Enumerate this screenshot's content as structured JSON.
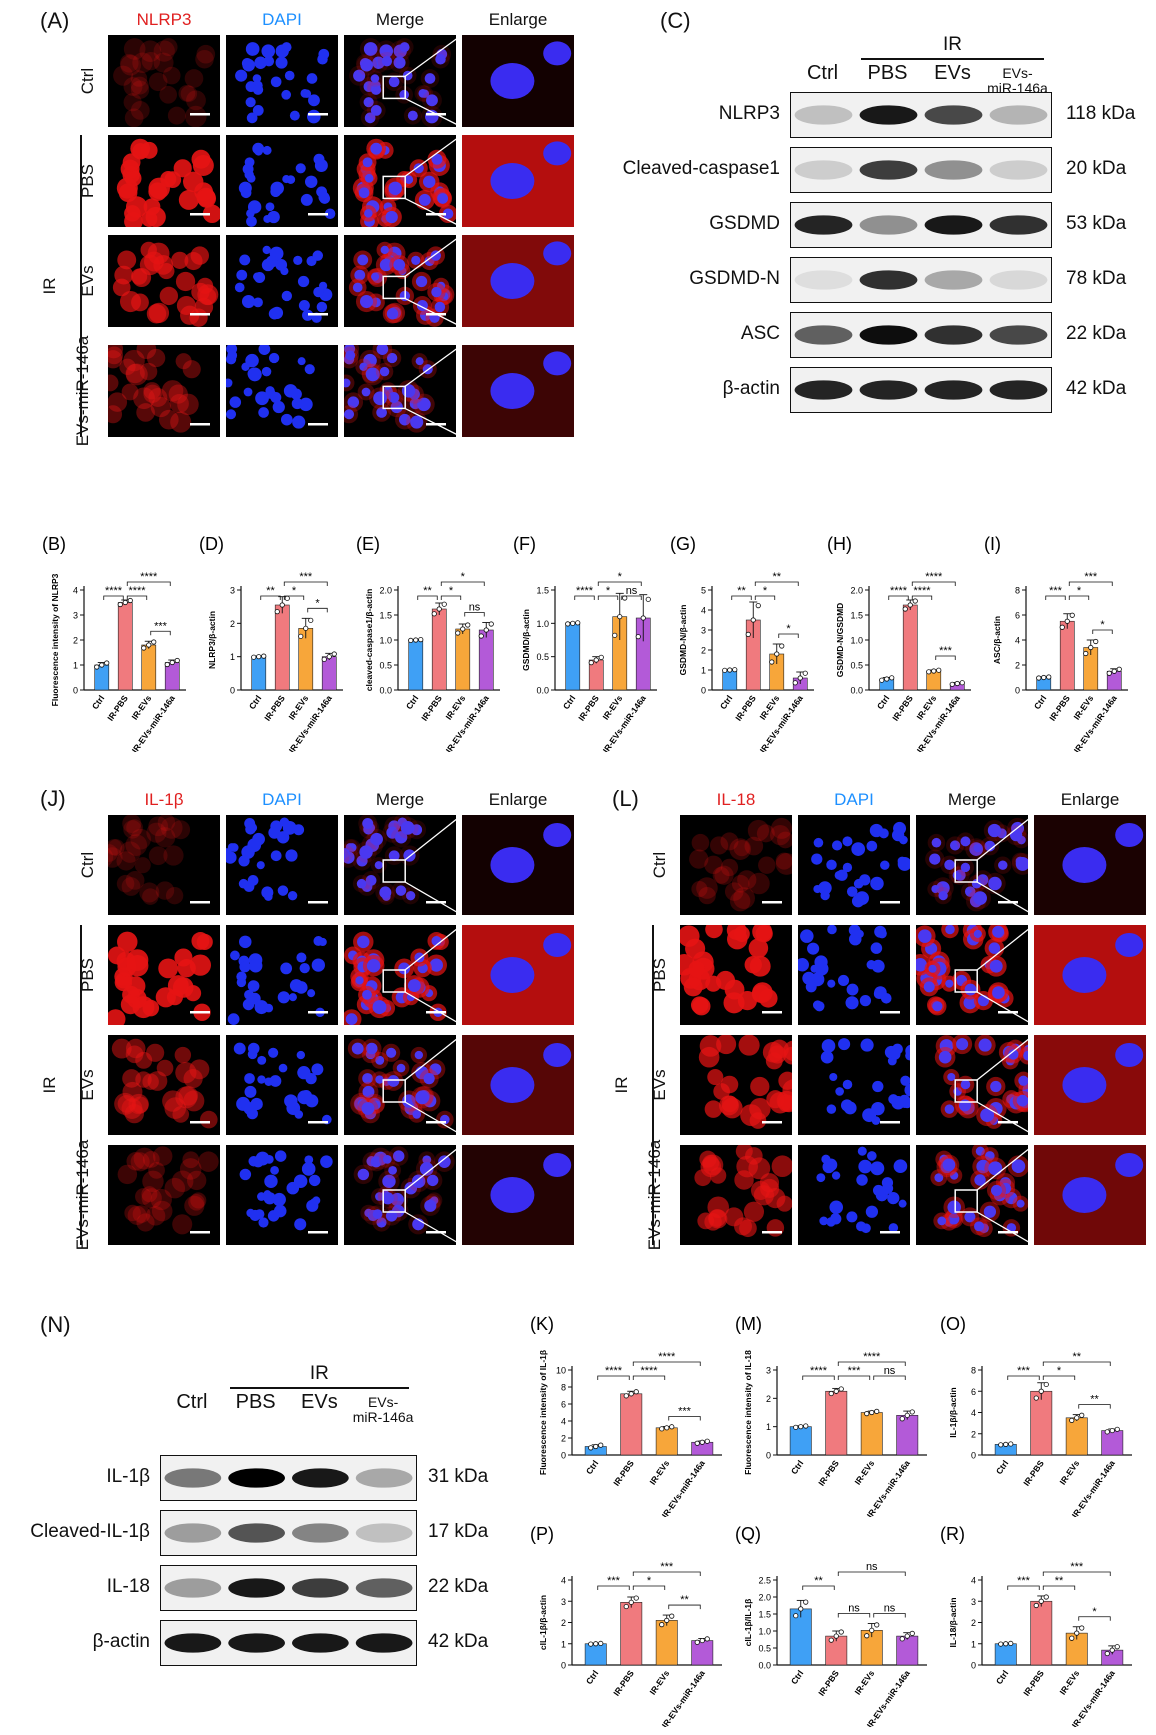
{
  "colors": {
    "ctrl": "#3fa0f5",
    "pbs": "#f07a7e",
    "evs": "#f7a63a",
    "mir": "#b35ad8",
    "nlrp3_label": "#e02020",
    "dapi_label": "#1e90ff"
  },
  "panelA": {
    "label": "(A)",
    "columns": [
      "NLRP3",
      "DAPI",
      "Merge",
      "Enlarge"
    ],
    "rows": [
      "Ctrl",
      "PBS",
      "EVs",
      "EVs-miR-146a"
    ],
    "group": "IR"
  },
  "panelC": {
    "label": "(C)",
    "group": "IR",
    "lanes": [
      "Ctrl",
      "PBS",
      "EVs",
      "EVs-\nmiR-146a"
    ],
    "bands": [
      {
        "name": "NLRP3",
        "kda": "118 kDa"
      },
      {
        "name": "Cleaved-caspase1",
        "kda": "20 kDa"
      },
      {
        "name": "GSDMD",
        "kda": "53 kDa"
      },
      {
        "name": "GSDMD-N",
        "kda": "78 kDa"
      },
      {
        "name": "ASC",
        "kda": "22 kDa"
      },
      {
        "name": "β-actin",
        "kda": "42 kDa"
      }
    ]
  },
  "panelJ": {
    "label": "(J)",
    "columns": [
      "IL-1β",
      "DAPI",
      "Merge",
      "Enlarge"
    ],
    "rows": [
      "Ctrl",
      "PBS",
      "EVs",
      "EVs-miR-146a"
    ],
    "group": "IR"
  },
  "panelL": {
    "label": "(L)",
    "columns": [
      "IL-18",
      "DAPI",
      "Merge",
      "Enlarge"
    ],
    "rows": [
      "Ctrl",
      "PBS",
      "EVs",
      "EVs-miR-146a"
    ],
    "group": "IR"
  },
  "panelN": {
    "label": "(N)",
    "group": "IR",
    "lanes": [
      "Ctrl",
      "PBS",
      "EVs",
      "EVs-\nmiR-146a"
    ],
    "bands": [
      {
        "name": "IL-1β",
        "kda": "31 kDa"
      },
      {
        "name": "Cleaved-IL-1β",
        "kda": "17 kDa"
      },
      {
        "name": "IL-18",
        "kda": "22 kDa"
      },
      {
        "name": "β-actin",
        "kda": "42 kDa"
      }
    ]
  },
  "chart_data": [
    {
      "id": "B",
      "label": "(B)",
      "type": "bar",
      "ylabel": "Fluorescence intensity of NLRP3",
      "categories": [
        "Ctrl",
        "IR-PBS",
        "IR-EVs",
        "IR-EVs-miR-146a"
      ],
      "values": [
        1.0,
        3.5,
        1.8,
        1.1
      ],
      "errors": [
        0.1,
        0.1,
        0.15,
        0.1
      ],
      "ylim": [
        0,
        4
      ],
      "yticks": [
        0,
        1,
        2,
        3,
        4
      ],
      "brackets": [
        {
          "a": 0,
          "b": 1,
          "text": "****",
          "lvl": 0
        },
        {
          "a": 1,
          "b": 2,
          "text": "****",
          "lvl": 0
        },
        {
          "a": 1,
          "b": 3,
          "text": "****",
          "lvl": 1
        },
        {
          "a": 2,
          "b": 3,
          "text": "***",
          "lvl": -1
        }
      ]
    },
    {
      "id": "D",
      "label": "(D)",
      "type": "bar",
      "ylabel": "NLRP3/β-actin",
      "categories": [
        "Ctrl",
        "IR-PBS",
        "IR-EVs",
        "IR-EVs-miR-146a"
      ],
      "values": [
        1.0,
        2.55,
        1.85,
        1.0
      ],
      "errors": [
        0.02,
        0.25,
        0.3,
        0.1
      ],
      "ylim": [
        0,
        3
      ],
      "yticks": [
        0,
        1,
        2,
        3
      ],
      "brackets": [
        {
          "a": 0,
          "b": 1,
          "text": "**",
          "lvl": 0
        },
        {
          "a": 1,
          "b": 2,
          "text": "*",
          "lvl": 0
        },
        {
          "a": 1,
          "b": 3,
          "text": "***",
          "lvl": 1
        },
        {
          "a": 2,
          "b": 3,
          "text": "*",
          "lvl": -1
        }
      ]
    },
    {
      "id": "E",
      "label": "(E)",
      "type": "bar",
      "ylabel": "cleaved-caspase1/β-actin",
      "categories": [
        "Ctrl",
        "IR-PBS",
        "IR-EVs",
        "IR-EVs-miR-146a"
      ],
      "values": [
        1.0,
        1.62,
        1.22,
        1.2
      ],
      "errors": [
        0.01,
        0.12,
        0.1,
        0.15
      ],
      "ylim": [
        0,
        2.0
      ],
      "yticks": [
        0,
        0.5,
        1.0,
        1.5,
        2.0
      ],
      "brackets": [
        {
          "a": 0,
          "b": 1,
          "text": "**",
          "lvl": 0
        },
        {
          "a": 1,
          "b": 2,
          "text": "*",
          "lvl": 0
        },
        {
          "a": 1,
          "b": 3,
          "text": "*",
          "lvl": 1
        },
        {
          "a": 2,
          "b": 3,
          "text": "ns",
          "lvl": -1
        }
      ]
    },
    {
      "id": "F",
      "label": "(F)",
      "type": "bar",
      "ylabel": "GSDMD/β-actin",
      "categories": [
        "Ctrl",
        "IR-PBS",
        "IR-EVs",
        "IR-EVs-miR-146a"
      ],
      "values": [
        1.0,
        0.45,
        1.1,
        1.08
      ],
      "errors": [
        0.01,
        0.05,
        0.35,
        0.35
      ],
      "ylim": [
        0,
        1.5
      ],
      "yticks": [
        0,
        0.5,
        1.0,
        1.5
      ],
      "brackets": [
        {
          "a": 0,
          "b": 1,
          "text": "****",
          "lvl": 0
        },
        {
          "a": 1,
          "b": 2,
          "text": "*",
          "lvl": 0
        },
        {
          "a": 1,
          "b": 3,
          "text": "*",
          "lvl": 1
        },
        {
          "a": 2,
          "b": 3,
          "text": "ns",
          "lvl": 0
        }
      ]
    },
    {
      "id": "G",
      "label": "(G)",
      "type": "bar",
      "ylabel": "GSDMD-N/β-actin",
      "categories": [
        "Ctrl",
        "IR-PBS",
        "IR-EVs",
        "IR-EVs-miR-146a"
      ],
      "values": [
        1.0,
        3.5,
        1.8,
        0.6
      ],
      "errors": [
        0.02,
        0.9,
        0.5,
        0.3
      ],
      "ylim": [
        0,
        5
      ],
      "yticks": [
        0,
        1,
        2,
        3,
        4,
        5
      ],
      "brackets": [
        {
          "a": 0,
          "b": 1,
          "text": "**",
          "lvl": 0
        },
        {
          "a": 1,
          "b": 2,
          "text": "*",
          "lvl": 0
        },
        {
          "a": 1,
          "b": 3,
          "text": "**",
          "lvl": 1
        },
        {
          "a": 2,
          "b": 3,
          "text": "*",
          "lvl": -1
        }
      ]
    },
    {
      "id": "H",
      "label": "(H)",
      "type": "bar",
      "ylabel": "GSDMD-N/GSDMD",
      "categories": [
        "Ctrl",
        "IR-PBS",
        "IR-EVs",
        "IR-EVs-miR-146a"
      ],
      "values": [
        0.22,
        1.7,
        0.38,
        0.13
      ],
      "errors": [
        0.03,
        0.1,
        0.02,
        0.02
      ],
      "ylim": [
        0,
        2.0
      ],
      "yticks": [
        0,
        0.5,
        1.0,
        1.5,
        2.0
      ],
      "brackets": [
        {
          "a": 0,
          "b": 1,
          "text": "****",
          "lvl": 0
        },
        {
          "a": 1,
          "b": 2,
          "text": "****",
          "lvl": 0
        },
        {
          "a": 1,
          "b": 3,
          "text": "****",
          "lvl": 1
        },
        {
          "a": 2,
          "b": 3,
          "text": "***",
          "lvl": -2
        }
      ]
    },
    {
      "id": "I",
      "label": "(I)",
      "type": "bar",
      "ylabel": "ASC/β-actin",
      "categories": [
        "Ctrl",
        "IR-PBS",
        "IR-EVs",
        "IR-EVs-miR-146a"
      ],
      "values": [
        1.0,
        5.5,
        3.4,
        1.5
      ],
      "errors": [
        0.05,
        0.6,
        0.6,
        0.2
      ],
      "ylim": [
        0,
        8
      ],
      "yticks": [
        0,
        2,
        4,
        6,
        8
      ],
      "brackets": [
        {
          "a": 0,
          "b": 1,
          "text": "***",
          "lvl": 0
        },
        {
          "a": 1,
          "b": 2,
          "text": "*",
          "lvl": 0
        },
        {
          "a": 1,
          "b": 3,
          "text": "***",
          "lvl": 1
        },
        {
          "a": 2,
          "b": 3,
          "text": "*",
          "lvl": -1
        }
      ]
    },
    {
      "id": "K",
      "label": "(K)",
      "type": "bar",
      "ylabel": "Fluorescence intensity of IL-1β",
      "categories": [
        "Ctrl",
        "IR-PBS",
        "IR-EVs",
        "IR-EVs-miR-146a"
      ],
      "values": [
        1.0,
        7.2,
        3.2,
        1.5
      ],
      "errors": [
        0.2,
        0.3,
        0.15,
        0.15
      ],
      "ylim": [
        0,
        10
      ],
      "yticks": [
        0,
        2,
        4,
        6,
        8,
        10
      ],
      "brackets": [
        {
          "a": 0,
          "b": 1,
          "text": "****",
          "lvl": 0
        },
        {
          "a": 1,
          "b": 2,
          "text": "****",
          "lvl": 0
        },
        {
          "a": 1,
          "b": 3,
          "text": "****",
          "lvl": 1
        },
        {
          "a": 2,
          "b": 3,
          "text": "***",
          "lvl": -1
        }
      ]
    },
    {
      "id": "M",
      "label": "(M)",
      "type": "bar",
      "ylabel": "Fluorescence intensity of IL-18",
      "categories": [
        "Ctrl",
        "IR-PBS",
        "IR-EVs",
        "IR-EVs-miR-146a"
      ],
      "values": [
        1.0,
        2.25,
        1.5,
        1.4
      ],
      "errors": [
        0.03,
        0.1,
        0.05,
        0.15
      ],
      "ylim": [
        0,
        3
      ],
      "yticks": [
        0,
        1,
        2,
        3
      ],
      "brackets": [
        {
          "a": 0,
          "b": 1,
          "text": "****",
          "lvl": 0
        },
        {
          "a": 1,
          "b": 2,
          "text": "***",
          "lvl": 0
        },
        {
          "a": 1,
          "b": 3,
          "text": "****",
          "lvl": 1
        },
        {
          "a": 2,
          "b": 3,
          "text": "ns",
          "lvl": 0
        }
      ]
    },
    {
      "id": "O",
      "label": "(O)",
      "type": "bar",
      "ylabel": "IL-1β/β-actin",
      "categories": [
        "Ctrl",
        "IR-PBS",
        "IR-EVs",
        "IR-EVs-miR-146a"
      ],
      "values": [
        1.0,
        6.0,
        3.5,
        2.3
      ],
      "errors": [
        0.05,
        0.8,
        0.3,
        0.15
      ],
      "ylim": [
        0,
        8
      ],
      "yticks": [
        0,
        2,
        4,
        6,
        8
      ],
      "brackets": [
        {
          "a": 0,
          "b": 1,
          "text": "***",
          "lvl": 0
        },
        {
          "a": 1,
          "b": 2,
          "text": "*",
          "lvl": 0
        },
        {
          "a": 1,
          "b": 3,
          "text": "**",
          "lvl": 1
        },
        {
          "a": 2,
          "b": 3,
          "text": "**",
          "lvl": -1
        }
      ]
    },
    {
      "id": "P",
      "label": "(P)",
      "type": "bar",
      "ylabel": "cIL-1β/β-actin",
      "categories": [
        "Ctrl",
        "IR-PBS",
        "IR-EVs",
        "IR-EVs-miR-146a"
      ],
      "values": [
        1.0,
        2.95,
        2.1,
        1.15
      ],
      "errors": [
        0.02,
        0.25,
        0.25,
        0.1
      ],
      "ylim": [
        0,
        4
      ],
      "yticks": [
        0,
        1,
        2,
        3,
        4
      ],
      "brackets": [
        {
          "a": 0,
          "b": 1,
          "text": "***",
          "lvl": 0
        },
        {
          "a": 1,
          "b": 2,
          "text": "*",
          "lvl": 0
        },
        {
          "a": 1,
          "b": 3,
          "text": "***",
          "lvl": 1
        },
        {
          "a": 2,
          "b": 3,
          "text": "**",
          "lvl": -1
        }
      ]
    },
    {
      "id": "Q",
      "label": "(Q)",
      "type": "bar",
      "ylabel": "cIL-1β/IL-1β",
      "categories": [
        "Ctrl",
        "IR-PBS",
        "IR-EVs",
        "IR-EVs-miR-146a"
      ],
      "values": [
        1.65,
        0.85,
        1.02,
        0.85
      ],
      "errors": [
        0.25,
        0.15,
        0.2,
        0.1
      ],
      "ylim": [
        0,
        2.5
      ],
      "yticks": [
        0,
        0.5,
        1.0,
        1.5,
        2.0,
        2.5
      ],
      "brackets": [
        {
          "a": 0,
          "b": 1,
          "text": "**",
          "lvl": 0
        },
        {
          "a": 1,
          "b": 2,
          "text": "ns",
          "lvl": -1
        },
        {
          "a": 1,
          "b": 3,
          "text": "ns",
          "lvl": 1
        },
        {
          "a": 2,
          "b": 3,
          "text": "ns",
          "lvl": -1
        }
      ]
    },
    {
      "id": "R",
      "label": "(R)",
      "type": "bar",
      "ylabel": "IL-18/β-actin",
      "categories": [
        "Ctrl",
        "IR-PBS",
        "IR-EVs",
        "IR-EVs-miR-146a"
      ],
      "values": [
        1.0,
        3.0,
        1.5,
        0.7
      ],
      "errors": [
        0.02,
        0.25,
        0.3,
        0.2
      ],
      "ylim": [
        0,
        4
      ],
      "yticks": [
        0,
        1,
        2,
        3,
        4
      ],
      "brackets": [
        {
          "a": 0,
          "b": 1,
          "text": "***",
          "lvl": 0
        },
        {
          "a": 1,
          "b": 2,
          "text": "**",
          "lvl": 0
        },
        {
          "a": 1,
          "b": 3,
          "text": "***",
          "lvl": 1
        },
        {
          "a": 2,
          "b": 3,
          "text": "*",
          "lvl": -1
        }
      ]
    }
  ]
}
